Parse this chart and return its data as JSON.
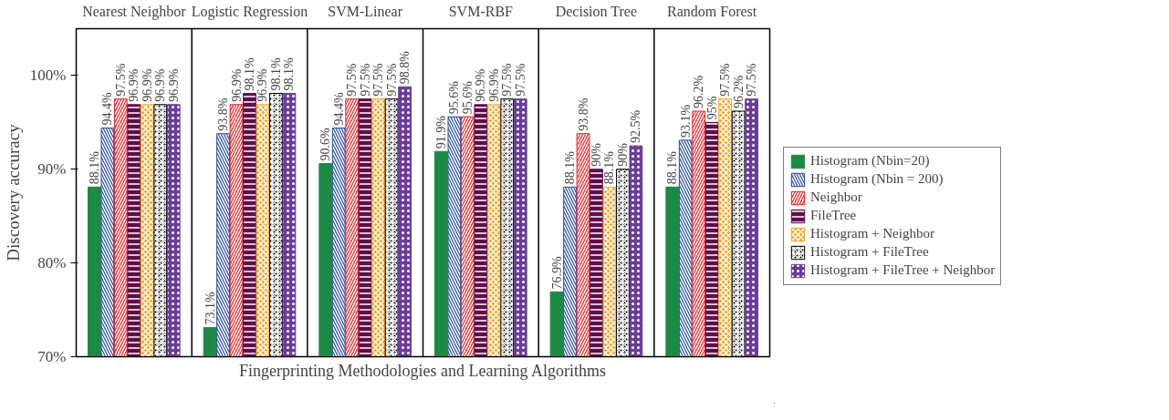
{
  "chart_data": {
    "type": "bar",
    "xlabel": "Fingerprinting Methodologies and Learning Algorithms",
    "ylabel": "Discovery accuracy",
    "categories": [
      "Nearest Neighbor",
      "Logistic Regression",
      "SVM-Linear",
      "SVM-RBF",
      "Decision Tree",
      "Random Forest"
    ],
    "ylim": [
      70,
      105
    ],
    "yticks": [
      {
        "value": 70,
        "label": "70%"
      },
      {
        "value": 80,
        "label": "80%"
      },
      {
        "value": 90,
        "label": "90%"
      },
      {
        "value": 100,
        "label": "100%"
      }
    ],
    "grid": false,
    "legend": "right",
    "series": [
      {
        "name": "Histogram (Nbin=20)",
        "color": "#1a8a45",
        "values": [
          88.1,
          73.1,
          90.6,
          91.9,
          76.9,
          88.1
        ],
        "value_labels": [
          "88.1%",
          "73.1%",
          "90.6%",
          "91.9%",
          "76.9%",
          "88.1%"
        ]
      },
      {
        "name": "Histogram (Nbin = 200)",
        "color": "#2a4fa0",
        "values": [
          94.4,
          93.8,
          94.4,
          95.6,
          88.1,
          93.1
        ],
        "value_labels": [
          "94.4%",
          "93.8%",
          "94.4%",
          "95.6%",
          "88.1%",
          "93.1%"
        ]
      },
      {
        "name": "Neighbor",
        "color": "#e8262a",
        "values": [
          97.5,
          96.9,
          97.5,
          95.6,
          93.8,
          96.2
        ],
        "value_labels": [
          "97.5%",
          "96.9%",
          "97.5%",
          "95.6%",
          "93.8%",
          "96.2%"
        ]
      },
      {
        "name": "FileTree",
        "color": "#5e0f4a",
        "values": [
          96.9,
          98.1,
          97.5,
          96.9,
          90,
          95
        ],
        "value_labels": [
          "96.9%",
          "98.1%",
          "97.5%",
          "96.9%",
          "90%",
          "95%"
        ]
      },
      {
        "name": "Histogram + Neighbor",
        "color": "#f5a623",
        "values": [
          96.9,
          96.9,
          97.5,
          96.9,
          88.1,
          97.5
        ],
        "value_labels": [
          "96.9%",
          "96.9%",
          "97.5%",
          "96.9%",
          "88.1%",
          "97.5%"
        ]
      },
      {
        "name": "Histogram + FileTree",
        "color": "#000000",
        "values": [
          96.9,
          98.1,
          97.5,
          97.5,
          90,
          96.2
        ],
        "value_labels": [
          "96.9%",
          "98.1%",
          "97.5%",
          "97.5%",
          "90%",
          "96.2%"
        ]
      },
      {
        "name": "Histogram + FileTree + Neighbor",
        "color": "#6a3d9a",
        "values": [
          96.9,
          98.1,
          98.8,
          97.5,
          92.5,
          97.5
        ],
        "value_labels": [
          "96.9%",
          "98.1%",
          "98.8%",
          "97.5%",
          "92.5%",
          "97.5%"
        ]
      }
    ]
  }
}
